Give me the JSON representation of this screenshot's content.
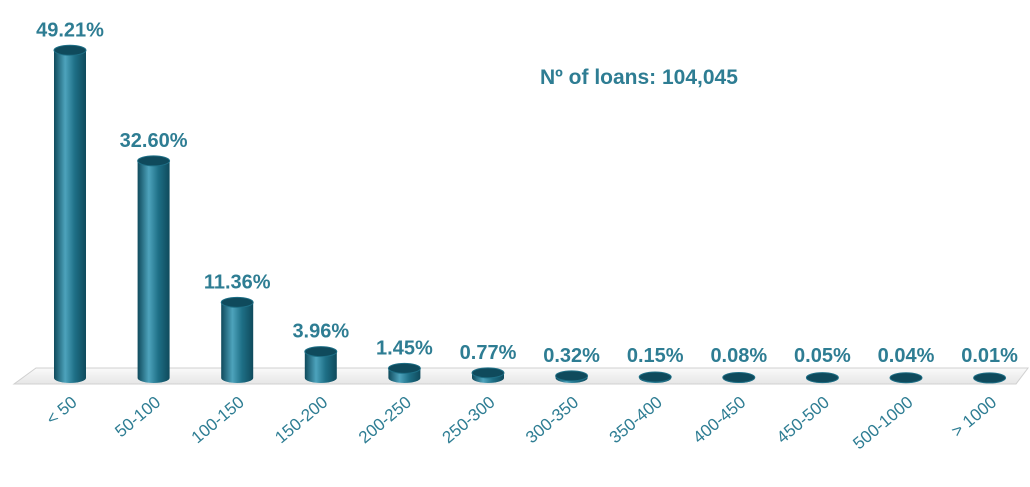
{
  "chart_data": {
    "type": "bar",
    "categories": [
      "< 50",
      "50-100",
      "100-150",
      "150-200",
      "200-250",
      "250-300",
      "300-350",
      "350-400",
      "400-450",
      "450-500",
      "500-1000",
      "> 1000"
    ],
    "values": [
      49.21,
      32.6,
      11.36,
      3.96,
      1.45,
      0.77,
      0.32,
      0.15,
      0.08,
      0.05,
      0.04,
      0.01
    ],
    "value_labels": [
      "49.21%",
      "32.60%",
      "11.36%",
      "3.96%",
      "1.45%",
      "0.77%",
      "0.32%",
      "0.15%",
      "0.08%",
      "0.05%",
      "0.04%",
      "0.01%"
    ],
    "ylim": [
      0,
      50
    ],
    "annotation": "Nº of loans: 104,045",
    "bar_style": "3d-cylinder",
    "colors": {
      "bar": "#1E6F86",
      "bar_light": "#4DA3BC",
      "bar_dark": "#0F4A5C",
      "label": "#2E7D93",
      "floor": "#F2F2F2"
    }
  }
}
